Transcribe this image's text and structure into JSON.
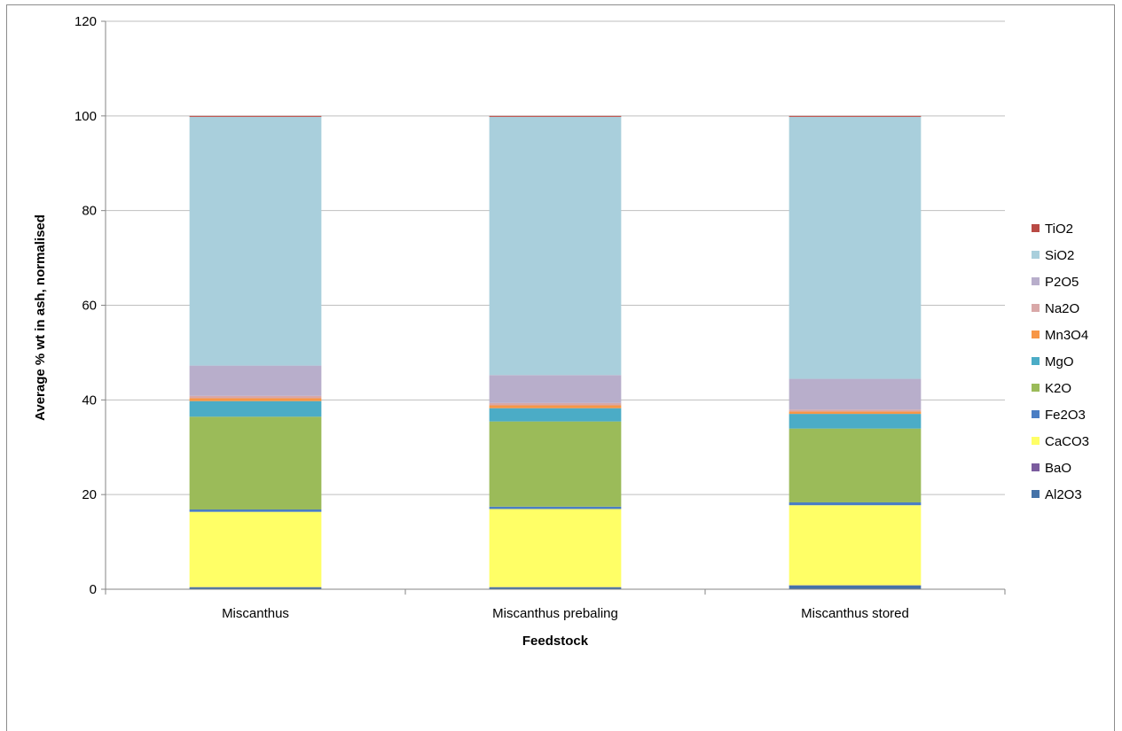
{
  "chart_data": {
    "type": "bar",
    "stacked": true,
    "categories": [
      "Miscanthus",
      "Miscanthus prebaling",
      "Miscanthus stored"
    ],
    "xlabel": "Feedstock",
    "ylabel": "Average % wt in ash, normalised",
    "ylim": [
      0,
      120
    ],
    "yticks": [
      0,
      20,
      40,
      60,
      80,
      100,
      120
    ],
    "grid": true,
    "legend_position": "right",
    "series": [
      {
        "name": "Al2O3",
        "color": "#4472a8",
        "values": [
          0.4,
          0.4,
          0.8
        ]
      },
      {
        "name": "BaO",
        "color": "#7b5c9e",
        "values": [
          0.05,
          0.05,
          0.05
        ]
      },
      {
        "name": "CaCO3",
        "color": "#ffff66",
        "values": [
          15.9,
          16.5,
          16.9
        ]
      },
      {
        "name": "Fe2O3",
        "color": "#4a7ec4",
        "values": [
          0.5,
          0.5,
          0.6
        ]
      },
      {
        "name": "K2O",
        "color": "#9bbb59",
        "values": [
          19.6,
          18.0,
          15.6
        ]
      },
      {
        "name": "MgO",
        "color": "#4bacc6",
        "values": [
          3.3,
          2.8,
          3.1
        ]
      },
      {
        "name": "Mn3O4",
        "color": "#f79646",
        "values": [
          0.6,
          0.6,
          0.5
        ]
      },
      {
        "name": "Na2O",
        "color": "#d9a8a8",
        "values": [
          0.5,
          0.5,
          0.4
        ]
      },
      {
        "name": "P2O5",
        "color": "#b8aecb",
        "values": [
          6.4,
          5.9,
          6.5
        ]
      },
      {
        "name": "SiO2",
        "color": "#a9cfdc",
        "values": [
          52.55,
          54.55,
          55.35
        ]
      },
      {
        "name": "TiO2",
        "color": "#b94a44",
        "values": [
          0.2,
          0.2,
          0.2
        ]
      }
    ]
  }
}
